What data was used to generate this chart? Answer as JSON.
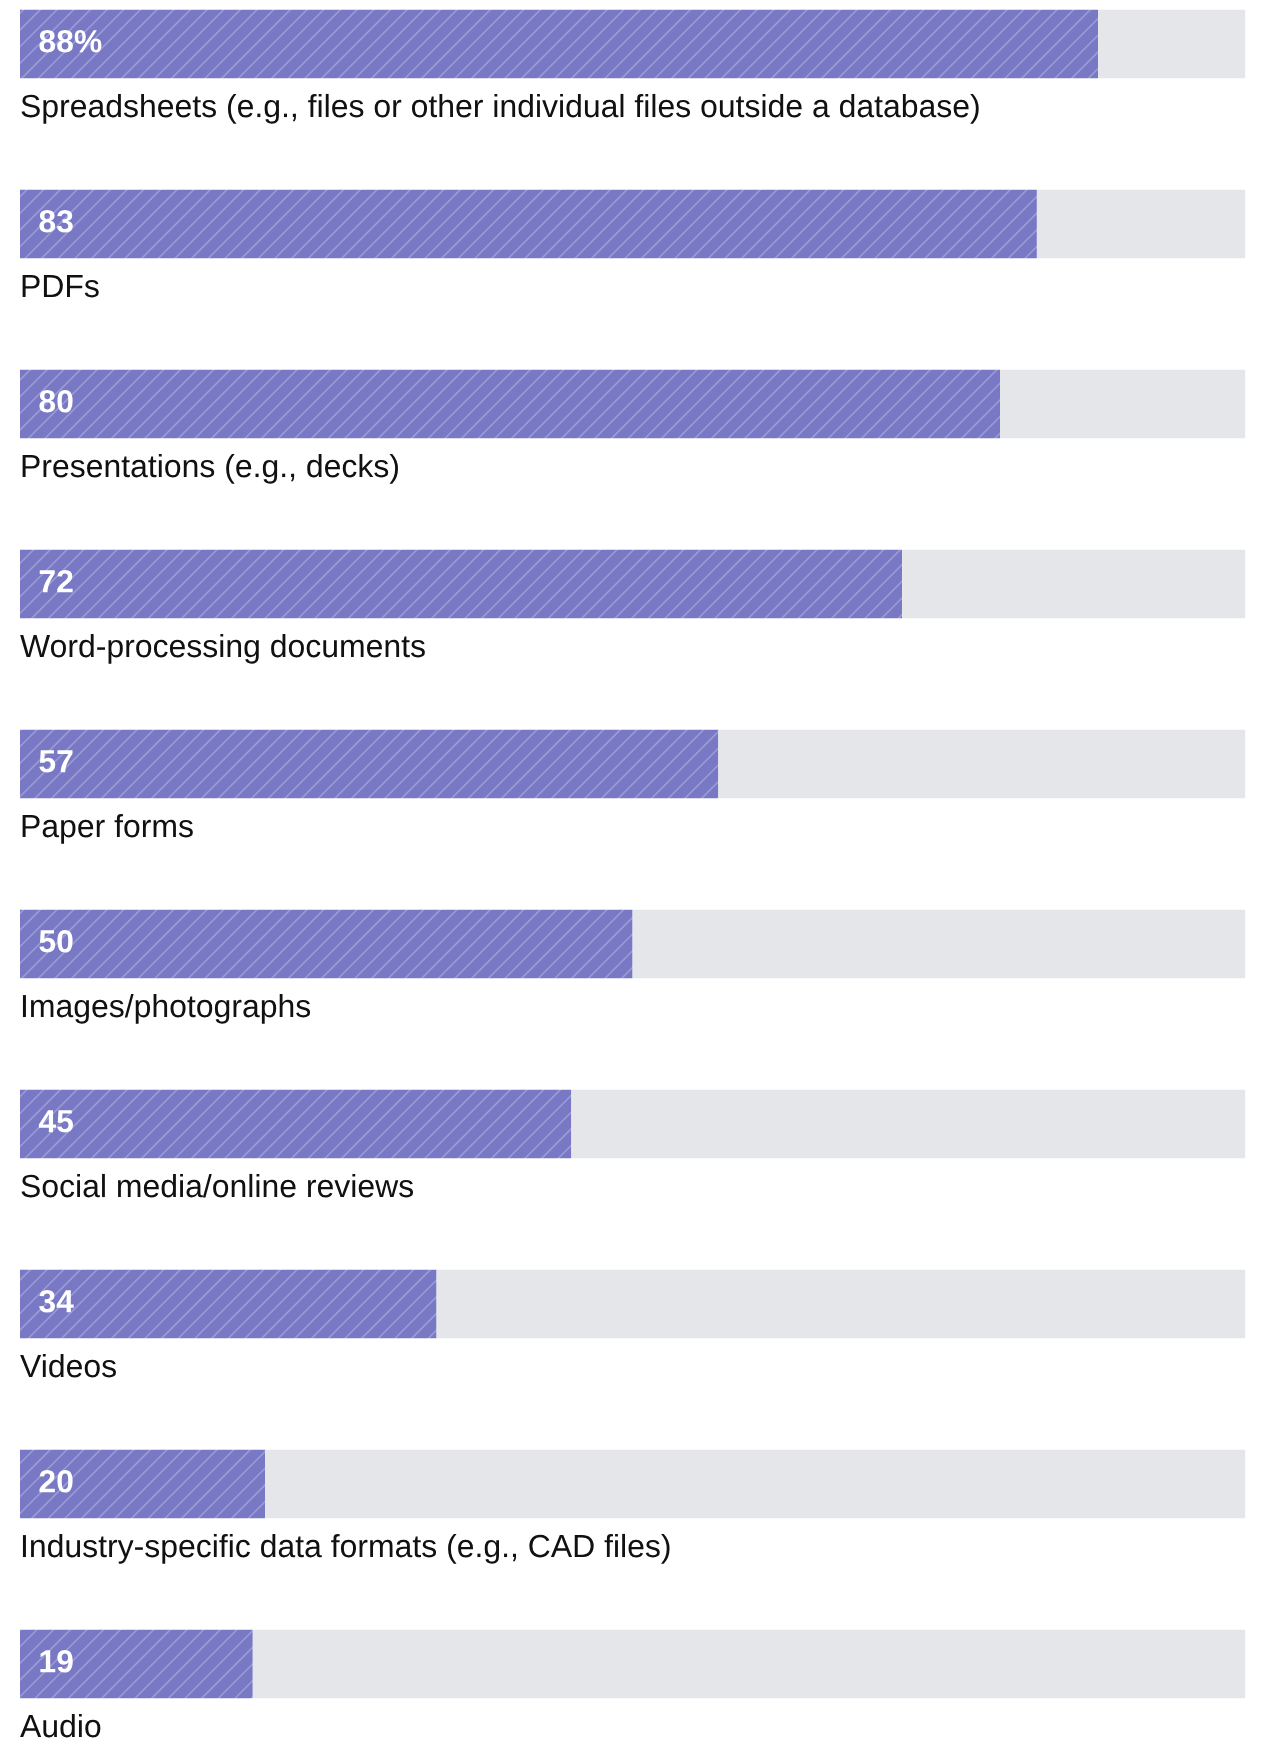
{
  "chart_data": {
    "type": "bar",
    "orientation": "horizontal",
    "stacked": true,
    "categories": [
      "Spreadsheets (e.g., files or other individual files outside a database)",
      "PDFs",
      "Presentations (e.g., decks)",
      "Word-processing documents",
      "Paper forms",
      "Images/photographs",
      "Social media/online reviews",
      "Videos",
      "Industry-specific data formats (e.g., CAD files)",
      "Audio"
    ],
    "series": [
      {
        "color": "#7878c4",
        "values": [
          88,
          83,
          80,
          72,
          57,
          50,
          45,
          34,
          20,
          19
        ],
        "value_labels": [
          "88%",
          "83",
          "80",
          "72",
          "57",
          "50",
          "45",
          "34",
          "20",
          "19"
        ]
      },
      {
        "color": "#e4e6e9",
        "values": [
          12,
          17,
          20,
          28,
          43,
          50,
          55,
          66,
          80,
          81
        ]
      }
    ],
    "legend": false
  }
}
